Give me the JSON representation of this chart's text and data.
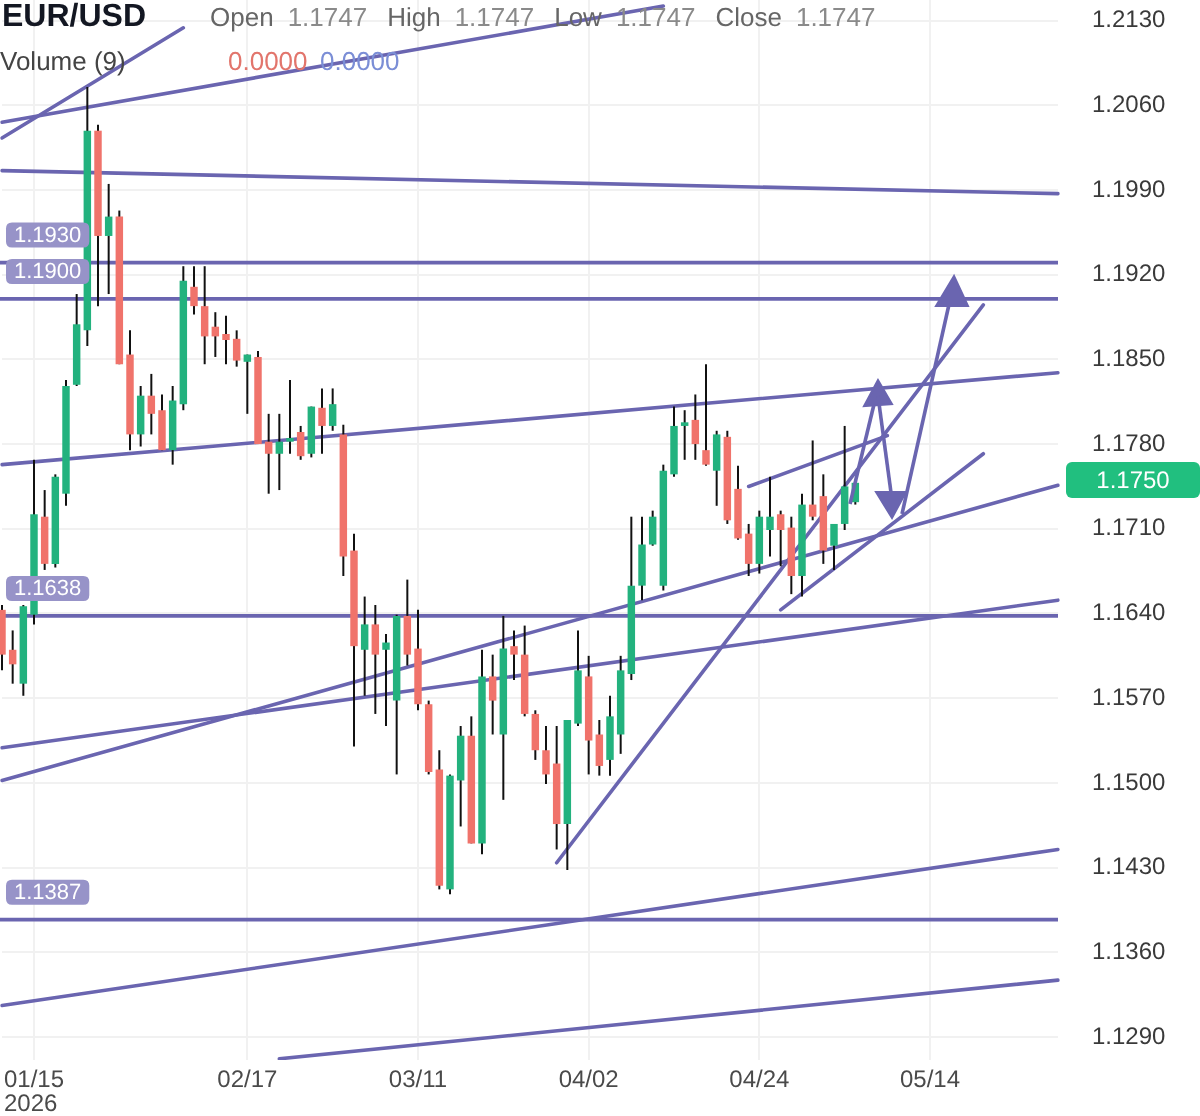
{
  "chart_data": {
    "type": "candlestick",
    "title": "EUR/USD",
    "subtitle": "Open 1.1747 High 1.1747 Low 1.1747 Close 1.1747",
    "categories": [
      null,
      null,
      null,
      "01/15\n2026",
      null,
      null,
      null,
      null,
      null,
      null,
      null,
      null,
      null,
      null,
      null,
      null,
      null,
      null,
      null,
      null,
      null,
      null,
      null,
      "02/17",
      null,
      null,
      null,
      null,
      null,
      null,
      null,
      null,
      null,
      null,
      null,
      null,
      null,
      null,
      null,
      "03/11",
      null,
      null,
      null,
      null,
      null,
      null,
      null,
      null,
      null,
      null,
      null,
      null,
      null,
      null,
      null,
      "04/02",
      null,
      null,
      null,
      null,
      null,
      null,
      null,
      null,
      null,
      null,
      null,
      null,
      null,
      null,
      null,
      "04/24",
      null,
      null,
      null,
      null,
      null,
      null,
      null,
      null,
      null,
      null,
      null,
      null,
      null,
      null,
      null,
      "05/14",
      null,
      null,
      null,
      null,
      null,
      null,
      null,
      null,
      null,
      null,
      null,
      null
    ],
    "ohlc": [
      [
        1.1643,
        1.1647,
        1.1593,
        1.1606
      ],
      [
        1.161,
        1.1626,
        1.1582,
        1.1598
      ],
      [
        1.1582,
        1.1647,
        1.1572,
        1.1646
      ],
      [
        1.1639,
        1.1767,
        1.1631,
        1.1722
      ],
      [
        1.172,
        1.1742,
        1.1676,
        1.1681
      ],
      [
        1.1681,
        1.1755,
        1.1678,
        1.1753
      ],
      [
        1.1739,
        1.1833,
        1.1729,
        1.1828
      ],
      [
        1.1829,
        1.1904,
        1.1828,
        1.1879
      ],
      [
        1.1874,
        1.2075,
        1.1861,
        1.2039
      ],
      [
        1.2039,
        1.2044,
        1.1894,
        1.1952
      ],
      [
        1.1952,
        1.1995,
        1.1904,
        1.1968
      ],
      [
        1.1968,
        1.1973,
        1.1846,
        1.1846
      ],
      [
        1.1854,
        1.1874,
        1.1775,
        1.1788
      ],
      [
        1.1788,
        1.1828,
        1.1778,
        1.182
      ],
      [
        1.182,
        1.1838,
        1.1788,
        1.1805
      ],
      [
        1.1808,
        1.1821,
        1.1775,
        1.1775
      ],
      [
        1.1775,
        1.1828,
        1.1763,
        1.1816
      ],
      [
        1.1813,
        1.1927,
        1.1808,
        1.1915
      ],
      [
        1.191,
        1.1927,
        1.1887,
        1.1894
      ],
      [
        1.1894,
        1.1927,
        1.1846,
        1.1869
      ],
      [
        1.1877,
        1.1889,
        1.1852,
        1.1869
      ],
      [
        1.1871,
        1.1886,
        1.1846,
        1.1866
      ],
      [
        1.1867,
        1.1874,
        1.1844,
        1.1849
      ],
      [
        1.1848,
        1.1854,
        1.1805,
        1.1854
      ],
      [
        1.1852,
        1.1857,
        1.178,
        1.178
      ],
      [
        1.1782,
        1.1805,
        1.1739,
        1.1772
      ],
      [
        1.1772,
        1.1805,
        1.1742,
        1.1782
      ],
      [
        1.1782,
        1.1833,
        1.1772,
        1.1785
      ],
      [
        1.179,
        1.1795,
        1.1767,
        1.177
      ],
      [
        1.1772,
        1.1811,
        1.1769,
        1.1811
      ],
      [
        1.181,
        1.1826,
        1.1772,
        1.1795
      ],
      [
        1.1795,
        1.1826,
        1.1791,
        1.1813
      ],
      [
        1.1788,
        1.1796,
        1.1671,
        1.1687
      ],
      [
        1.1692,
        1.1706,
        1.153,
        1.1613
      ],
      [
        1.161,
        1.1654,
        1.1572,
        1.1631
      ],
      [
        1.1631,
        1.1647,
        1.1557,
        1.1606
      ],
      [
        1.161,
        1.1623,
        1.1547,
        1.1616
      ],
      [
        1.1568,
        1.1639,
        1.1507,
        1.1638
      ],
      [
        1.1638,
        1.1668,
        1.1597,
        1.1606
      ],
      [
        1.1611,
        1.1643,
        1.156,
        1.1565
      ],
      [
        1.1565,
        1.1568,
        1.1507,
        1.1509
      ],
      [
        1.1511,
        1.1527,
        1.1412,
        1.1415
      ],
      [
        1.1412,
        1.1507,
        1.1408,
        1.1506
      ],
      [
        1.1502,
        1.1547,
        1.1464,
        1.1539
      ],
      [
        1.1539,
        1.1555,
        1.145,
        1.145
      ],
      [
        1.145,
        1.161,
        1.1441,
        1.1588
      ],
      [
        1.1588,
        1.1606,
        1.154,
        1.1568
      ],
      [
        1.154,
        1.1638,
        1.1486,
        1.1611
      ],
      [
        1.1613,
        1.1626,
        1.1585,
        1.1606
      ],
      [
        1.1606,
        1.163,
        1.1555,
        1.1557
      ],
      [
        1.1557,
        1.156,
        1.1519,
        1.1527
      ],
      [
        1.1527,
        1.1547,
        1.1499,
        1.1507
      ],
      [
        1.1516,
        1.1547,
        1.1445,
        1.1466
      ],
      [
        1.1466,
        1.1552,
        1.1428,
        1.1552
      ],
      [
        1.1549,
        1.1626,
        1.1547,
        1.1593
      ],
      [
        1.1588,
        1.1605,
        1.1507,
        1.1535
      ],
      [
        1.154,
        1.1552,
        1.1506,
        1.1514
      ],
      [
        1.1519,
        1.1572,
        1.1506,
        1.1555
      ],
      [
        1.154,
        1.1605,
        1.1524,
        1.1593
      ],
      [
        1.159,
        1.172,
        1.1585,
        1.1663
      ],
      [
        1.1663,
        1.172,
        1.1651,
        1.1697
      ],
      [
        1.1697,
        1.1725,
        1.1696,
        1.172
      ],
      [
        1.1663,
        1.1763,
        1.1659,
        1.1758
      ],
      [
        1.1755,
        1.1811,
        1.1753,
        1.1795
      ],
      [
        1.1795,
        1.1808,
        1.1767,
        1.1798
      ],
      [
        1.18,
        1.1821,
        1.1767,
        1.178
      ],
      [
        1.1775,
        1.1846,
        1.1762,
        1.1763
      ],
      [
        1.1758,
        1.1791,
        1.1729,
        1.1788
      ],
      [
        1.1786,
        1.1791,
        1.1714,
        1.1717
      ],
      [
        1.1743,
        1.1762,
        1.1701,
        1.1702
      ],
      [
        1.1706,
        1.1714,
        1.1671,
        1.1681
      ],
      [
        1.1681,
        1.1725,
        1.1673,
        1.172
      ],
      [
        1.1709,
        1.1753,
        1.1687,
        1.172
      ],
      [
        1.1722,
        1.1725,
        1.1679,
        1.1709
      ],
      [
        1.1711,
        1.172,
        1.1656,
        1.1671
      ],
      [
        1.1671,
        1.1739,
        1.1654,
        1.173
      ],
      [
        1.173,
        1.1783,
        1.1717,
        1.172
      ],
      [
        1.1737,
        1.1755,
        1.1681,
        1.1692
      ],
      [
        1.1696,
        1.1714,
        1.1676,
        1.1714
      ],
      [
        1.1714,
        1.1795,
        1.1709,
        1.1745
      ],
      [
        1.1732,
        1.1748,
        1.173,
        1.1748
      ],
      null,
      null,
      null,
      null,
      null,
      null,
      null,
      null,
      null,
      null,
      null,
      null,
      null,
      null,
      null,
      null,
      null,
      null,
      null
    ],
    "colors": [
      "#f0736b",
      "#f0736b",
      "#23b27e",
      "#23b27e",
      "#f0736b",
      "#23b27e",
      "#23b27e",
      "#23b27e",
      "#23b27e",
      "#f0736b",
      "#23b27e",
      "#f0736b",
      "#f0736b",
      "#23b27e",
      "#f0736b",
      "#f0736b",
      "#23b27e",
      "#23b27e",
      "#f0736b",
      "#f0736b",
      "#f0736b",
      "#f0736b",
      "#f0736b",
      "#23b27e",
      "#f0736b",
      "#f0736b",
      "#23b27e",
      "#23b27e",
      "#f0736b",
      "#23b27e",
      "#f0736b",
      "#23b27e",
      "#f0736b",
      "#f0736b",
      "#23b27e",
      "#f0736b",
      "#23b27e",
      "#23b27e",
      "#f0736b",
      "#f0736b",
      "#f0736b",
      "#f0736b",
      "#23b27e",
      "#23b27e",
      "#f0736b",
      "#23b27e",
      "#f0736b",
      "#23b27e",
      "#f0736b",
      "#f0736b",
      "#f0736b",
      "#f0736b",
      "#f0736b",
      "#23b27e",
      "#23b27e",
      "#f0736b",
      "#f0736b",
      "#23b27e",
      "#23b27e",
      "#23b27e",
      "#23b27e",
      "#23b27e",
      "#23b27e",
      "#23b27e",
      "#23b27e",
      "#f0736b",
      "#f0736b",
      "#23b27e",
      "#f0736b",
      "#f0736b",
      "#f0736b",
      "#23b27e",
      "#23b27e",
      "#f0736b",
      "#f0736b",
      "#23b27e",
      "#f0736b",
      "#f0736b",
      "#23b27e",
      "#23b27e",
      "#23b27e",
      null,
      null,
      null,
      null,
      null,
      null,
      null,
      null,
      null,
      null,
      null,
      null,
      null,
      null,
      null,
      null,
      null,
      null,
      null
    ],
    "series": [
      {
        "type": "line",
        "color": "#6a65b0",
        "values": [
          1.2033,
          null,
          null,
          null,
          null,
          null,
          null,
          null,
          null,
          null,
          null,
          null,
          null,
          null,
          null,
          null,
          null,
          1.2124,
          null,
          null,
          null,
          null,
          null,
          null,
          null,
          null,
          null,
          null,
          null,
          null,
          null,
          null,
          null,
          null,
          null,
          null,
          null,
          null,
          null,
          null,
          null,
          null,
          null,
          null,
          null,
          null,
          null,
          null,
          null,
          null,
          null,
          null,
          null,
          null,
          null,
          null,
          null,
          null,
          null,
          null,
          null,
          null,
          null,
          null,
          null,
          null,
          null,
          null,
          null,
          null,
          null,
          null,
          null,
          null,
          null,
          null,
          null,
          null,
          null,
          null,
          null,
          null,
          null,
          null,
          null,
          null,
          null,
          null,
          null,
          null,
          null,
          null,
          null,
          null,
          null,
          null,
          null,
          null,
          null,
          null
        ]
      },
      {
        "type": "line",
        "color": "#6a65b0",
        "values": [
          1.2046,
          null,
          null,
          null,
          null,
          null,
          null,
          null,
          null,
          null,
          null,
          null,
          null,
          null,
          null,
          null,
          null,
          null,
          null,
          null,
          null,
          null,
          null,
          null,
          null,
          null,
          null,
          null,
          null,
          null,
          null,
          null,
          null,
          null,
          null,
          null,
          null,
          null,
          null,
          null,
          null,
          null,
          null,
          null,
          null,
          null,
          null,
          null,
          null,
          null,
          null,
          null,
          null,
          null,
          null,
          null,
          null,
          null,
          null,
          null,
          null,
          null,
          1.2142,
          null,
          null,
          null,
          null,
          null,
          null,
          null,
          null,
          null,
          null,
          null,
          null,
          null,
          null,
          null,
          null,
          null,
          null,
          null,
          null,
          null,
          null,
          null,
          null,
          null,
          null,
          null,
          null,
          null,
          null,
          null,
          null,
          null,
          null,
          null,
          null,
          null
        ]
      },
      {
        "type": "line",
        "color": "#6a65b0",
        "values": [
          1.2006,
          null,
          null,
          null,
          null,
          null,
          null,
          null,
          null,
          null,
          null,
          null,
          null,
          null,
          null,
          null,
          null,
          null,
          null,
          null,
          null,
          null,
          null,
          null,
          null,
          null,
          null,
          null,
          null,
          null,
          null,
          null,
          null,
          null,
          null,
          null,
          null,
          null,
          null,
          null,
          null,
          null,
          null,
          null,
          null,
          null,
          null,
          null,
          null,
          null,
          null,
          null,
          null,
          null,
          null,
          null,
          null,
          null,
          null,
          null,
          null,
          null,
          null,
          null,
          null,
          null,
          null,
          null,
          null,
          null,
          null,
          null,
          null,
          null,
          null,
          null,
          null,
          null,
          null,
          null,
          null,
          null,
          null,
          null,
          null,
          null,
          null,
          null,
          null,
          null,
          null,
          null,
          null,
          null,
          null,
          null,
          null,
          null,
          null,
          1.1987
        ]
      },
      {
        "type": "line",
        "color": "#6a65b0",
        "values": [
          1.1763,
          null,
          null,
          null,
          null,
          null,
          null,
          null,
          null,
          null,
          null,
          null,
          null,
          null,
          null,
          null,
          null,
          null,
          null,
          null,
          null,
          null,
          null,
          null,
          null,
          null,
          null,
          null,
          null,
          null,
          null,
          null,
          null,
          null,
          null,
          null,
          null,
          null,
          null,
          null,
          null,
          null,
          null,
          null,
          null,
          null,
          null,
          null,
          null,
          null,
          null,
          null,
          null,
          null,
          null,
          null,
          null,
          null,
          null,
          null,
          null,
          null,
          null,
          null,
          null,
          null,
          null,
          null,
          null,
          null,
          null,
          null,
          null,
          null,
          null,
          null,
          null,
          null,
          null,
          null,
          null,
          null,
          null,
          null,
          null,
          null,
          null,
          null,
          null,
          null,
          null,
          null,
          null,
          null,
          null,
          null,
          null,
          null,
          null,
          1.1839
        ]
      },
      {
        "type": "line",
        "color": "#6a65b0",
        "values": [
          1.1529,
          null,
          null,
          null,
          null,
          null,
          null,
          null,
          null,
          null,
          null,
          null,
          null,
          null,
          null,
          null,
          null,
          null,
          null,
          null,
          null,
          null,
          null,
          null,
          null,
          null,
          null,
          null,
          null,
          null,
          null,
          null,
          null,
          null,
          null,
          null,
          null,
          null,
          null,
          null,
          null,
          null,
          null,
          null,
          null,
          null,
          null,
          null,
          null,
          null,
          null,
          null,
          null,
          null,
          null,
          null,
          null,
          null,
          null,
          null,
          null,
          null,
          null,
          null,
          null,
          null,
          null,
          null,
          null,
          null,
          null,
          null,
          null,
          null,
          null,
          null,
          null,
          null,
          null,
          null,
          null,
          null,
          null,
          null,
          null,
          null,
          null,
          null,
          null,
          null,
          null,
          null,
          null,
          null,
          null,
          null,
          null,
          null,
          null,
          1.1651
        ]
      },
      {
        "type": "line",
        "color": "#6a65b0",
        "values": [
          1.1502,
          null,
          null,
          null,
          null,
          null,
          null,
          null,
          null,
          null,
          null,
          null,
          null,
          null,
          null,
          null,
          null,
          null,
          null,
          null,
          null,
          null,
          null,
          null,
          null,
          null,
          null,
          null,
          null,
          null,
          null,
          null,
          null,
          null,
          null,
          null,
          null,
          null,
          null,
          null,
          null,
          null,
          null,
          null,
          null,
          null,
          null,
          null,
          null,
          null,
          null,
          null,
          null,
          null,
          null,
          null,
          null,
          null,
          null,
          null,
          null,
          null,
          null,
          null,
          null,
          null,
          null,
          null,
          null,
          null,
          null,
          null,
          null,
          null,
          null,
          null,
          null,
          null,
          null,
          null,
          null,
          null,
          null,
          null,
          null,
          null,
          null,
          null,
          null,
          null,
          null,
          null,
          null,
          null,
          null,
          null,
          null,
          null,
          null,
          1.1746
        ]
      },
      {
        "type": "line",
        "color": "#6a65b0",
        "values": [
          1.1316,
          null,
          null,
          null,
          null,
          null,
          null,
          null,
          null,
          null,
          null,
          null,
          null,
          null,
          null,
          null,
          null,
          null,
          null,
          null,
          null,
          null,
          null,
          null,
          null,
          null,
          null,
          null,
          null,
          null,
          null,
          null,
          null,
          null,
          null,
          null,
          null,
          null,
          null,
          null,
          null,
          null,
          null,
          null,
          null,
          null,
          null,
          null,
          null,
          null,
          null,
          null,
          null,
          null,
          null,
          null,
          null,
          null,
          null,
          null,
          null,
          null,
          null,
          null,
          null,
          null,
          null,
          null,
          null,
          null,
          null,
          null,
          null,
          null,
          null,
          null,
          null,
          null,
          null,
          null,
          null,
          null,
          null,
          null,
          null,
          null,
          null,
          null,
          null,
          null,
          null,
          null,
          null,
          null,
          null,
          null,
          null,
          null,
          null,
          1.1445
        ]
      },
      {
        "type": "line",
        "color": "#6a65b0",
        "values": [
          null,
          null,
          null,
          null,
          null,
          null,
          null,
          null,
          null,
          null,
          null,
          null,
          null,
          null,
          null,
          null,
          null,
          null,
          null,
          null,
          null,
          null,
          null,
          null,
          null,
          null,
          1.1272,
          null,
          null,
          null,
          null,
          null,
          null,
          null,
          null,
          null,
          null,
          null,
          null,
          null,
          null,
          null,
          null,
          null,
          null,
          null,
          null,
          null,
          null,
          null,
          null,
          null,
          null,
          null,
          null,
          null,
          null,
          null,
          null,
          null,
          null,
          null,
          null,
          null,
          null,
          null,
          null,
          null,
          null,
          null,
          null,
          null,
          null,
          null,
          null,
          null,
          null,
          null,
          null,
          null,
          null,
          null,
          null,
          null,
          null,
          null,
          null,
          null,
          null,
          null,
          null,
          null,
          null,
          null,
          null,
          null,
          null,
          null,
          null,
          1.1337
        ]
      },
      {
        "type": "line",
        "color": "#6a65b0",
        "values": [
          null,
          null,
          null,
          null,
          null,
          null,
          null,
          null,
          null,
          null,
          null,
          null,
          null,
          null,
          null,
          null,
          null,
          null,
          null,
          null,
          null,
          null,
          null,
          null,
          null,
          null,
          null,
          null,
          null,
          null,
          null,
          null,
          null,
          null,
          null,
          null,
          null,
          null,
          null,
          null,
          null,
          null,
          null,
          null,
          null,
          null,
          null,
          null,
          null,
          null,
          null,
          null,
          1.1434,
          null,
          null,
          null,
          null,
          null,
          null,
          null,
          null,
          null,
          null,
          null,
          null,
          null,
          null,
          null,
          null,
          null,
          null,
          null,
          null,
          null,
          null,
          null,
          null,
          null,
          null,
          null,
          null,
          null,
          null,
          null,
          null,
          null,
          null,
          null,
          null,
          null,
          null,
          null,
          1.1895,
          null,
          null,
          null,
          null,
          null,
          null,
          null
        ]
      },
      {
        "type": "line",
        "color": "#6a65b0",
        "values": [
          null,
          null,
          null,
          null,
          null,
          null,
          null,
          null,
          null,
          null,
          null,
          null,
          null,
          null,
          null,
          null,
          null,
          null,
          null,
          null,
          null,
          null,
          null,
          null,
          null,
          null,
          null,
          null,
          null,
          null,
          null,
          null,
          null,
          null,
          null,
          null,
          null,
          null,
          null,
          null,
          null,
          null,
          null,
          null,
          null,
          null,
          null,
          null,
          null,
          null,
          null,
          null,
          null,
          null,
          null,
          null,
          null,
          null,
          null,
          null,
          null,
          null,
          null,
          null,
          null,
          null,
          null,
          null,
          null,
          null,
          1.1745,
          null,
          null,
          null,
          null,
          null,
          null,
          null,
          null,
          null,
          null,
          null,
          null,
          1.1787,
          null,
          null,
          null,
          null,
          null,
          null,
          null,
          null,
          null,
          null,
          null,
          null,
          null,
          null,
          null,
          null
        ]
      },
      {
        "type": "line",
        "color": "#6a65b0",
        "values": [
          null,
          null,
          null,
          null,
          null,
          null,
          null,
          null,
          null,
          null,
          null,
          null,
          null,
          null,
          null,
          null,
          null,
          null,
          null,
          null,
          null,
          null,
          null,
          null,
          null,
          null,
          null,
          null,
          null,
          null,
          null,
          null,
          null,
          null,
          null,
          null,
          null,
          null,
          null,
          null,
          null,
          null,
          null,
          null,
          null,
          null,
          null,
          null,
          null,
          null,
          null,
          null,
          null,
          null,
          null,
          null,
          null,
          null,
          null,
          null,
          null,
          null,
          null,
          null,
          null,
          null,
          null,
          null,
          null,
          null,
          null,
          null,
          null,
          1.1643,
          null,
          null,
          null,
          null,
          null,
          null,
          null,
          null,
          null,
          null,
          null,
          null,
          null,
          null,
          null,
          null,
          null,
          null,
          1.1772,
          null,
          null,
          null,
          null,
          null,
          null,
          null
        ]
      }
    ],
    "ref_lines": [
      {
        "axis": "y",
        "value": 1.193,
        "label": "1.1930",
        "color": "#6a65b0"
      },
      {
        "axis": "y",
        "value": 1.19,
        "label": "1.1900",
        "color": "#6a65b0"
      },
      {
        "axis": "y",
        "value": 1.1638,
        "label": "1.1638",
        "color": "#6a65b0"
      },
      {
        "axis": "y",
        "value": 1.1387,
        "label": "1.1387",
        "color": "#6a65b0"
      }
    ],
    "annotations": [
      "Volume (9)",
      "0.0000",
      "0.0000",
      "1.1750"
    ],
    "ylim": [
      1.1271,
      1.2147
    ],
    "yticks": [
      {
        "value": 1.213,
        "label": "1.2130"
      },
      {
        "value": 1.206,
        "label": "1.2060"
      },
      {
        "value": 1.199,
        "label": "1.1990"
      },
      {
        "value": 1.192,
        "label": "1.1920"
      },
      {
        "value": 1.185,
        "label": "1.1850"
      },
      {
        "value": 1.178,
        "label": "1.1780"
      },
      {
        "value": 1.171,
        "label": "1.1710"
      },
      {
        "value": 1.164,
        "label": "1.1640"
      },
      {
        "value": 1.157,
        "label": "1.1570"
      },
      {
        "value": 1.15,
        "label": "1.1500"
      },
      {
        "value": 1.143,
        "label": "1.1430"
      },
      {
        "value": 1.136,
        "label": "1.1360"
      },
      {
        "value": 1.129,
        "label": "1.1290"
      }
    ],
    "grid": true
  }
}
